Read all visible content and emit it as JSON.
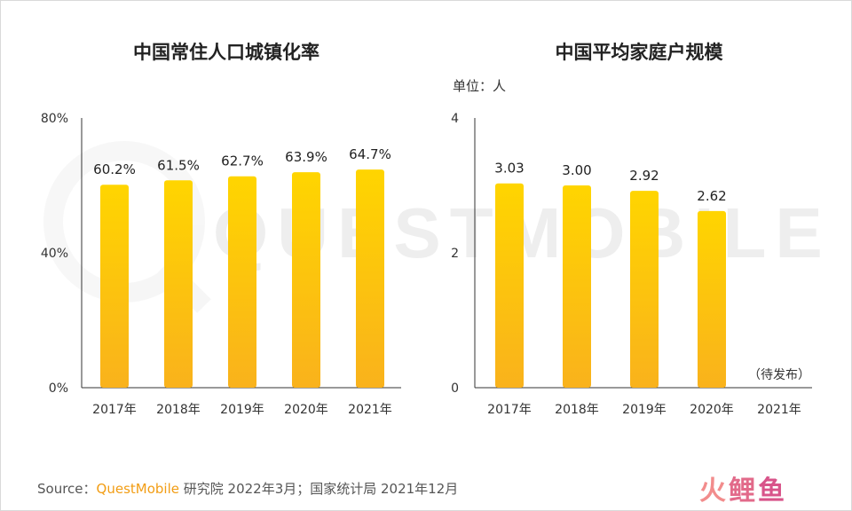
{
  "chart_data": [
    {
      "type": "bar",
      "title": "中国常住人口城镇化率",
      "categories": [
        "2017年",
        "2018年",
        "2019年",
        "2020年",
        "2021年"
      ],
      "values": [
        60.2,
        61.5,
        62.7,
        63.9,
        64.7
      ],
      "data_labels": [
        "60.2%",
        "61.5%",
        "62.7%",
        "63.9%",
        "64.7%"
      ],
      "yticks": [
        "80%",
        "40%",
        "0%"
      ],
      "ytick_values": [
        80,
        40,
        0
      ],
      "ylim": [
        0,
        80
      ],
      "grid": false,
      "colors": {
        "bar_top": "#ffd500",
        "bar_bottom": "#f9b21c",
        "axis": "#333333"
      }
    },
    {
      "type": "bar",
      "title": "中国平均家庭户规模",
      "unit": "单位：人",
      "categories": [
        "2017年",
        "2018年",
        "2019年",
        "2020年",
        "2021年"
      ],
      "values": [
        3.03,
        3.0,
        2.92,
        2.62,
        null
      ],
      "data_labels": [
        "3.03",
        "3.00",
        "2.92",
        "2.62",
        ""
      ],
      "pending_note": "（待发布）",
      "yticks": [
        "4",
        "2",
        "0"
      ],
      "ytick_values": [
        4,
        2,
        0
      ],
      "ylim": [
        0,
        4
      ],
      "grid": false,
      "colors": {
        "bar_top": "#ffd500",
        "bar_bottom": "#f9b21c",
        "axis": "#333333"
      }
    }
  ],
  "watermark": "QUESTMOBILE",
  "source": {
    "prefix": "Source：",
    "brand": "QuestMobile",
    "rest": " 研究院 2022年3月；国家统计局 2021年12月"
  },
  "logo": {
    "char1": "火",
    "char2": "鲤",
    "char3": "鱼"
  }
}
